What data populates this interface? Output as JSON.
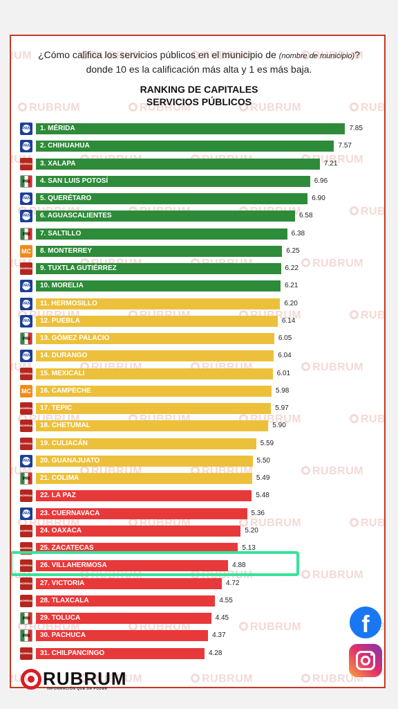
{
  "watermark": "RUBRUM",
  "question": {
    "prefix": "¿Cómo califica los servicios públicos en el municipio de ",
    "italic": "(nombre de municipio)",
    "suffix": "? donde 10 es la calificación más alta y 1 es más baja."
  },
  "colors": {
    "green": "#2e8b3a",
    "yellow": "#ecc03a",
    "red": "#e8393a",
    "highlight": "#37e39a",
    "border": "#c8381f"
  },
  "chart_data": {
    "type": "bar",
    "orientation": "horizontal",
    "title_line1": "RANKING DE CAPITALES",
    "title_line2": "SERVICIOS PÚBLICOS",
    "xlim": [
      0,
      8
    ],
    "categories": [
      "1. MÉRIDA",
      "2. CHIHUAHUA",
      "3. XALAPA",
      "4. SAN LUIS POTOSÍ",
      "5. QUERÉTARO",
      "6. AGUASCALIENTES",
      "7. SALTILLO",
      "8. MONTERREY",
      "9. TUXTLA GUTIÉRREZ",
      "10. MORELIA",
      "11. HERMOSILLO",
      "12. PUEBLA",
      "13. GÓMEZ PALACIO",
      "14. DURANGO",
      "15. MEXICALI",
      "16. CAMPECHE",
      "17. TEPIC",
      "18. CHETUMAL",
      "19. CULIACÁN",
      "20. GUANAJUATO",
      "21. COLIMA",
      "22. LA PAZ",
      "23. CUERNAVACA",
      "24. OAXACA",
      "25. ZACATECAS",
      "26. VILLAHERMOSA",
      "27. VICTORIA",
      "28. TLAXCALA",
      "29. TOLUCA",
      "30. PACHUCA",
      "31. CHILPANCINGO"
    ],
    "values": [
      7.85,
      7.57,
      7.21,
      6.96,
      6.9,
      6.58,
      6.38,
      6.25,
      6.22,
      6.21,
      6.2,
      6.14,
      6.05,
      6.04,
      6.01,
      5.98,
      5.97,
      5.9,
      5.59,
      5.5,
      5.49,
      5.48,
      5.36,
      5.2,
      5.13,
      4.88,
      4.72,
      4.55,
      4.45,
      4.37,
      4.28
    ],
    "value_labels": [
      "7.85",
      "7.57",
      "7.21",
      "6.96",
      "6.90",
      "6.58",
      "6.38",
      "6.25",
      "6.22",
      "6.21",
      "6.20",
      "6.14",
      "6.05",
      "6.04",
      "6.01",
      "5.98",
      "5.97",
      "5.90",
      "5.59",
      "5.50",
      "5.49",
      "5.48",
      "5.36",
      "5.20",
      "5.13",
      "4.88",
      "4.72",
      "4.55",
      "4.45",
      "4.37",
      "4.28"
    ],
    "bar_colors": [
      "green",
      "green",
      "green",
      "green",
      "green",
      "green",
      "green",
      "green",
      "green",
      "green",
      "yellow",
      "yellow",
      "yellow",
      "yellow",
      "yellow",
      "yellow",
      "yellow",
      "yellow",
      "yellow",
      "yellow",
      "yellow",
      "red",
      "red",
      "red",
      "red",
      "red",
      "red",
      "red",
      "red",
      "red",
      "red"
    ],
    "party_logos": [
      "pan",
      "pan",
      "morena",
      "pri",
      "pan",
      "pan",
      "pri",
      "mc",
      "morena",
      "pan",
      "pan",
      "pan",
      "pri",
      "pan",
      "morena",
      "mc",
      "morena",
      "morena",
      "morena",
      "pan",
      "pri",
      "morena",
      "pan",
      "morena",
      "morena",
      "morena",
      "morena",
      "morena",
      "pri",
      "pri",
      "morena"
    ],
    "highlighted": "26. VILLAHERMOSA"
  },
  "logo_text": {
    "pan": "PAN",
    "morena": "MORENA",
    "pri": "PRI",
    "mc": "MC"
  },
  "social": {
    "facebook": "f"
  },
  "brand": {
    "name": "RUBRUM",
    "tagline": "INFORMACIÓN QUE DA PODER"
  }
}
